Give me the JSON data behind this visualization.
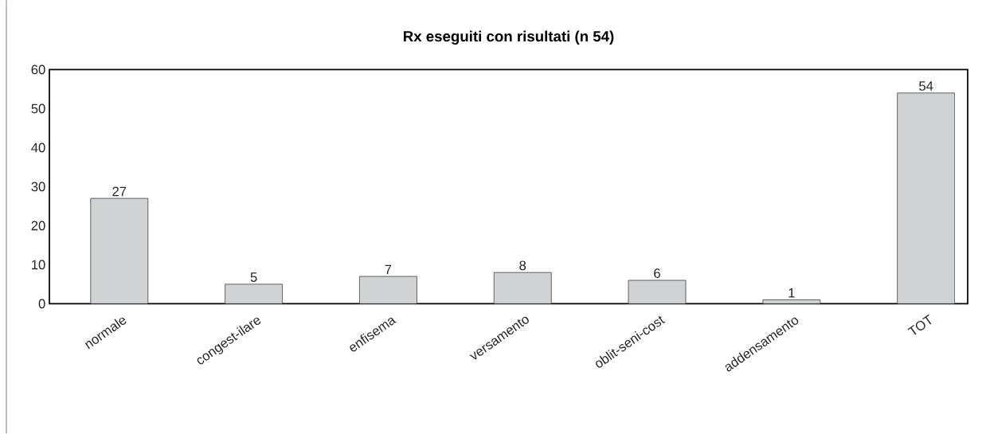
{
  "chart_data": {
    "type": "bar",
    "title": "Rx eseguiti con risultati (n 54)",
    "categories": [
      "normale",
      "congest-ilare",
      "enfisema",
      "versamento",
      "oblit-seni-cost",
      "addensamento",
      "TOT"
    ],
    "values": [
      27,
      5,
      7,
      8,
      6,
      1,
      54
    ],
    "color": "#d1d2d4",
    "ylim": [
      0,
      60
    ],
    "yticks": [
      0,
      10,
      20,
      30,
      40,
      50,
      60
    ],
    "data_labels": true
  }
}
